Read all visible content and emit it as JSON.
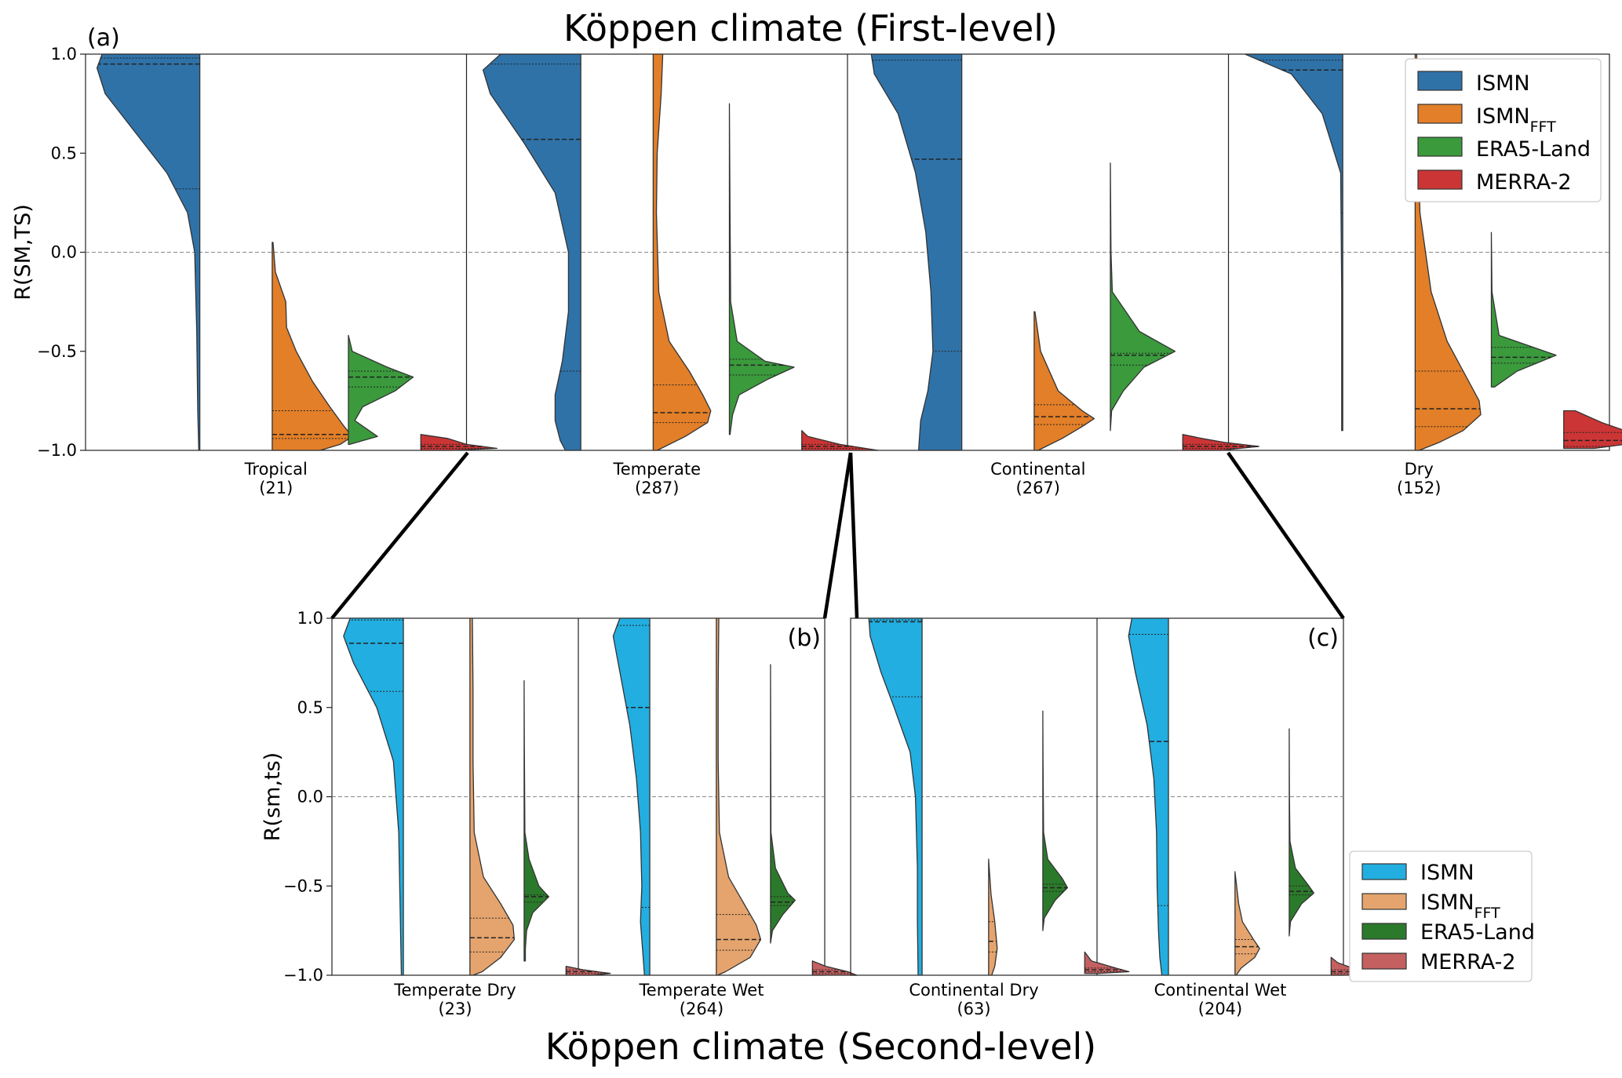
{
  "figure": {
    "title_top": "Köppen climate (First-level)",
    "title_bottom": "Köppen climate (Second-level)"
  },
  "chart_data": [
    {
      "id": "a",
      "panel_label": "(a)",
      "type": "violin",
      "ylabel": "R(SM,TS)",
      "ylim": [
        -1.0,
        1.0
      ],
      "yticks": [
        1.0,
        0.5,
        0.0,
        -0.5,
        -1.0
      ],
      "ytick_labels": [
        "1.0",
        "0.5",
        "0.0",
        "−0.5",
        "−1.0"
      ],
      "reference_line": 0.0,
      "legend": {
        "placement": "top-right",
        "entries": [
          {
            "label": "ISMN",
            "sub": ""
          },
          {
            "label": "ISMN",
            "sub": "FFT"
          },
          {
            "label": "ERA5-Land",
            "sub": ""
          },
          {
            "label": "MERRA-2",
            "sub": ""
          }
        ],
        "colors": [
          "#2f72a8",
          "#e27f28",
          "#3a9a3c",
          "#cc3535"
        ]
      },
      "categories": [
        {
          "name": "Tropical",
          "count": "(21)"
        },
        {
          "name": "Temperate",
          "count": "(287)"
        },
        {
          "name": "Continental",
          "count": "(267)"
        },
        {
          "name": "Dry",
          "count": "(152)"
        }
      ],
      "series": [
        {
          "name": "ISMN",
          "quartiles": [
            [
              0.32,
              0.95,
              0.98
            ],
            [
              -0.6,
              0.57,
              0.95
            ],
            [
              -0.5,
              0.47,
              0.97
            ],
            [
              0.2,
              0.92,
              0.97
            ]
          ]
        },
        {
          "name": "ISMN_FFT",
          "quartiles": [
            [
              -0.94,
              -0.92,
              -0.8
            ],
            [
              -0.86,
              -0.81,
              -0.67
            ],
            [
              -0.87,
              -0.83,
              -0.77
            ],
            [
              -0.88,
              -0.79,
              -0.6
            ]
          ]
        },
        {
          "name": "ERA5-Land",
          "quartiles": [
            [
              -0.68,
              -0.63,
              -0.6
            ],
            [
              -0.62,
              -0.57,
              -0.54
            ],
            [
              -0.57,
              -0.52,
              -0.51
            ],
            [
              -0.56,
              -0.53,
              -0.48
            ]
          ]
        },
        {
          "name": "MERRA-2",
          "quartiles": [
            [
              -0.99,
              -0.98,
              -0.97
            ],
            [
              -0.99,
              -0.98,
              -0.97
            ],
            [
              -0.99,
              -0.98,
              -0.97
            ],
            [
              -0.98,
              -0.95,
              -0.91
            ]
          ]
        }
      ]
    },
    {
      "id": "b",
      "panel_label": "(b)",
      "type": "violin",
      "ylabel": "R(sm,ts)",
      "ylim": [
        -1.0,
        1.0
      ],
      "yticks": [
        1.0,
        0.5,
        0.0,
        -0.5,
        -1.0
      ],
      "ytick_labels": [
        "1.0",
        "0.5",
        "0.0",
        "−0.5",
        "−1.0"
      ],
      "reference_line": 0.0,
      "categories": [
        {
          "name": "Temperate Dry",
          "count": "(23)"
        },
        {
          "name": "Temperate Wet",
          "count": "(264)"
        }
      ],
      "series": [
        {
          "name": "ISMN",
          "quartiles": [
            [
              0.59,
              0.86,
              0.99
            ],
            [
              -0.62,
              0.5,
              0.96
            ]
          ]
        },
        {
          "name": "ISMN_FFT",
          "quartiles": [
            [
              -0.87,
              -0.79,
              -0.68
            ],
            [
              -0.86,
              -0.8,
              -0.66
            ]
          ]
        },
        {
          "name": "ERA5-Land",
          "quartiles": [
            [
              -0.59,
              -0.56,
              -0.55
            ],
            [
              -0.61,
              -0.59,
              -0.56
            ]
          ]
        },
        {
          "name": "MERRA-2",
          "quartiles": [
            [
              -0.99,
              -0.98,
              -0.97
            ],
            [
              -0.99,
              -0.98,
              -0.97
            ]
          ]
        }
      ]
    },
    {
      "id": "c",
      "panel_label": "(c)",
      "type": "violin",
      "ylim": [
        -1.0,
        1.0
      ],
      "reference_line": 0.0,
      "legend": {
        "placement": "lower-right outside",
        "entries": [
          {
            "label": "ISMN",
            "sub": ""
          },
          {
            "label": "ISMN",
            "sub": "FFT"
          },
          {
            "label": "ERA5-Land",
            "sub": ""
          },
          {
            "label": "MERRA-2",
            "sub": ""
          }
        ],
        "colors": [
          "#22aee0",
          "#e5a46d",
          "#2b7a2b",
          "#c46060"
        ]
      },
      "categories": [
        {
          "name": "Continental Dry",
          "count": "(63)"
        },
        {
          "name": "Continental Wet",
          "count": "(204)"
        }
      ],
      "series": [
        {
          "name": "ISMN",
          "quartiles": [
            [
              0.56,
              0.98,
              0.99
            ],
            [
              -0.61,
              0.31,
              0.91
            ]
          ]
        },
        {
          "name": "ISMN_FFT",
          "quartiles": [
            [
              -0.87,
              -0.81,
              -0.7
            ],
            [
              -0.88,
              -0.84,
              -0.8
            ]
          ]
        },
        {
          "name": "ERA5-Land",
          "quartiles": [
            [
              -0.53,
              -0.51,
              -0.49
            ],
            [
              -0.55,
              -0.53,
              -0.5
            ]
          ]
        },
        {
          "name": "MERRA-2",
          "quartiles": [
            [
              -0.98,
              -0.97,
              -0.96
            ],
            [
              -0.99,
              -0.98,
              -0.97
            ]
          ]
        }
      ]
    }
  ]
}
